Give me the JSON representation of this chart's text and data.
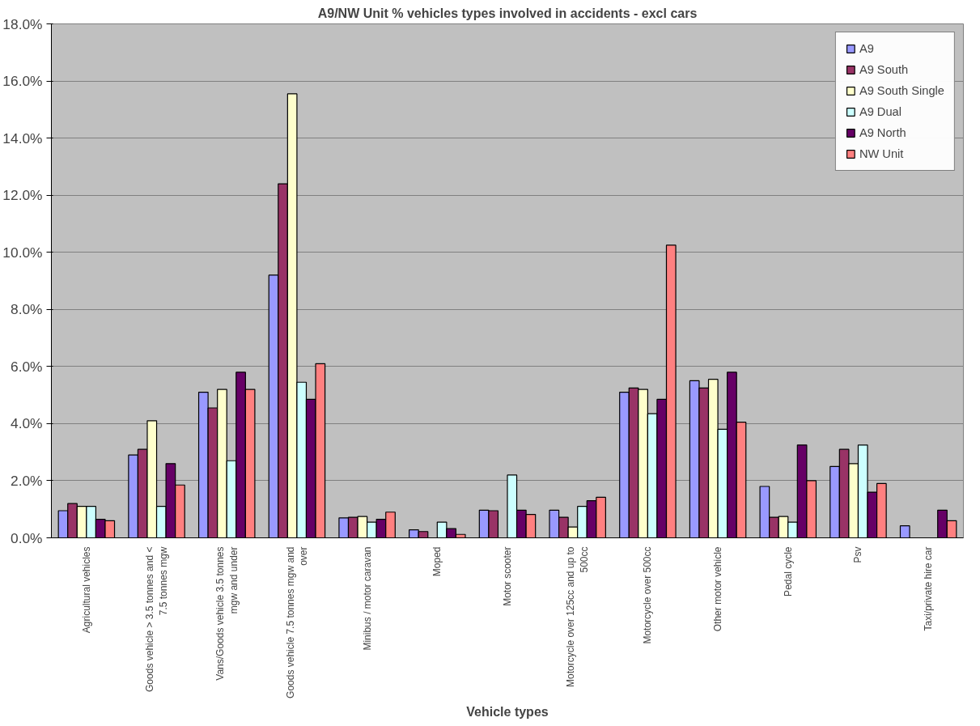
{
  "chart_data": {
    "type": "bar",
    "title": "A9/NW Unit % vehicles types involved in accidents - excl cars",
    "xlabel": "Vehicle types",
    "categories": [
      "Agricultural vehicles",
      "Goods vehicle > 3.5 tonnes and < 7.5 tonnes mgw",
      "Vans/Goods vehicle 3.5 tonnes mgw and under",
      "Goods vehicle 7.5 tonnes mgw and over",
      "Minibus / motor caravan",
      "Moped",
      "Motor scooter",
      "Motorcycle over 125cc and up to 500cc",
      "Motorcycle over 500cc",
      "Other motor vehicle",
      "Pedal cycle",
      "Psv",
      "Taxi/private hire car"
    ],
    "series": [
      {
        "name": "A9",
        "color": "#9999ff",
        "values": [
          0.95,
          2.9,
          5.1,
          9.2,
          0.7,
          0.28,
          0.97,
          0.97,
          5.1,
          5.5,
          1.8,
          2.5,
          0.42
        ]
      },
      {
        "name": "A9 South",
        "color": "#993366",
        "values": [
          1.2,
          3.1,
          4.55,
          12.4,
          0.72,
          0.22,
          0.95,
          0.72,
          5.25,
          5.25,
          0.72,
          3.1,
          null
        ]
      },
      {
        "name": "A9 South Single",
        "color": "#ffffcc",
        "values": [
          1.1,
          4.1,
          5.2,
          15.55,
          0.75,
          null,
          null,
          0.38,
          5.2,
          5.55,
          0.75,
          2.6,
          null
        ]
      },
      {
        "name": "A9 Dual",
        "color": "#ccffff",
        "values": [
          1.1,
          1.1,
          2.7,
          5.45,
          0.55,
          0.55,
          2.2,
          1.1,
          4.35,
          3.8,
          0.55,
          3.25,
          null
        ]
      },
      {
        "name": "A9 North",
        "color": "#660066",
        "values": [
          0.65,
          2.6,
          5.8,
          4.85,
          0.65,
          0.32,
          0.97,
          1.3,
          4.85,
          5.8,
          3.25,
          1.6,
          0.97
        ]
      },
      {
        "name": "NW Unit",
        "color": "#ff8080",
        "values": [
          0.6,
          1.85,
          5.2,
          6.1,
          0.9,
          0.12,
          0.82,
          1.42,
          10.25,
          4.05,
          2.0,
          1.9,
          0.6
        ]
      }
    ],
    "ylim": [
      0,
      18
    ],
    "yticks": [
      {
        "value": 0,
        "label": "0.0%"
      },
      {
        "value": 2,
        "label": "2.0%"
      },
      {
        "value": 4,
        "label": "4.0%"
      },
      {
        "value": 6,
        "label": "6.0%"
      },
      {
        "value": 8,
        "label": "8.0%"
      },
      {
        "value": 10,
        "label": "10.0%"
      },
      {
        "value": 12,
        "label": "12.0%"
      },
      {
        "value": 14,
        "label": "14.0%"
      },
      {
        "value": 16,
        "label": "16.0%"
      },
      {
        "value": 18,
        "label": "18.0%"
      }
    ],
    "grid": "y",
    "legend": "top right"
  }
}
